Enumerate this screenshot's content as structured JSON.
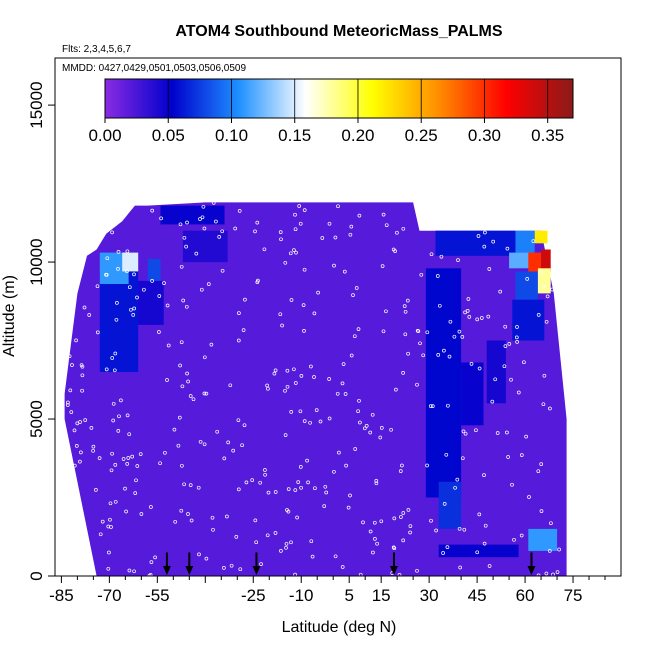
{
  "chart_data": {
    "type": "heatmap",
    "title": "ATOM4 Southbound MeteoricMass_PALMS",
    "subtitle_flights": "Flts: 2,3,4,5,6,7",
    "subtitle_dates": "MMDD: 0427,0429,0501,0503,0506,0509",
    "xlabel": "Latitude (deg N)",
    "ylabel": "Altitude (m)",
    "xlim": [
      -87,
      90
    ],
    "ylim": [
      0,
      16500
    ],
    "x_ticks": [
      -85,
      -70,
      -55,
      -40,
      -25,
      -10,
      5,
      15,
      30,
      45,
      60,
      75
    ],
    "x_tick_labels": [
      "-85",
      "-70",
      "-55",
      "",
      "-25",
      "-10",
      "5",
      "15",
      "30",
      "45",
      "60",
      "75"
    ],
    "y_ticks": [
      0,
      5000,
      10000,
      15000
    ],
    "y_tick_labels": [
      "0",
      "5000",
      "10000",
      "15000"
    ],
    "colorbar": {
      "min": 0,
      "max": 0.37,
      "ticks": [
        0.0,
        0.05,
        0.1,
        0.15,
        0.2,
        0.25,
        0.3,
        0.35
      ],
      "tick_labels": [
        "0.00",
        "0.05",
        "0.10",
        "0.15",
        "0.20",
        "0.25",
        "0.30",
        "0.35"
      ],
      "colors": [
        "#8a2be2",
        "#0000cd",
        "#1e90ff",
        "#ffffff",
        "#ffff00",
        "#ff8c00",
        "#ff0000",
        "#8b1a1a"
      ]
    },
    "background_value": 0.02,
    "coverage": [
      {
        "lat": -84,
        "top": 5800
      },
      {
        "lat": -80,
        "top": 9000
      },
      {
        "lat": -77,
        "top": 10200
      },
      {
        "lat": -74,
        "top": 10400
      },
      {
        "lat": -71,
        "top": 10900
      },
      {
        "lat": -66,
        "top": 11300
      },
      {
        "lat": -62,
        "top": 11800
      },
      {
        "lat": -58,
        "top": 11800
      },
      {
        "lat": -40,
        "top": 11900
      },
      {
        "lat": 5,
        "top": 11900
      },
      {
        "lat": 25,
        "top": 11900
      },
      {
        "lat": 27,
        "top": 11000
      },
      {
        "lat": 40,
        "top": 11000
      },
      {
        "lat": 55,
        "top": 11000
      },
      {
        "lat": 65,
        "top": 11000
      },
      {
        "lat": 67,
        "top": 10000
      },
      {
        "lat": 69,
        "top": 9000
      },
      {
        "lat": 71,
        "top": 7000
      },
      {
        "lat": 73,
        "top": 5000
      }
    ],
    "coverage_bottom": [
      {
        "lat": -84,
        "bottom": 5000
      },
      {
        "lat": -80,
        "bottom": 3000
      },
      {
        "lat": -77,
        "bottom": 1500
      },
      {
        "lat": -74,
        "bottom": 0
      },
      {
        "lat": 73,
        "bottom": 0
      }
    ],
    "features": [
      {
        "lat": [
          -73,
          -61
        ],
        "alt": [
          6500,
          9700
        ],
        "value": 0.06
      },
      {
        "lat": [
          -73,
          -64
        ],
        "alt": [
          9300,
          10300
        ],
        "value": 0.11
      },
      {
        "lat": [
          -66,
          -61
        ],
        "alt": [
          9700,
          10300
        ],
        "value": 0.15
      },
      {
        "lat": [
          -58,
          -54
        ],
        "alt": [
          9400,
          10100
        ],
        "value": 0.08
      },
      {
        "lat": [
          -61,
          -53
        ],
        "alt": [
          8000,
          9400
        ],
        "value": 0.045
      },
      {
        "lat": [
          -54,
          -34
        ],
        "alt": [
          11200,
          11800
        ],
        "value": 0.05
      },
      {
        "lat": [
          -47,
          -33
        ],
        "alt": [
          10000,
          11000
        ],
        "value": 0.04
      },
      {
        "lat": [
          29,
          40
        ],
        "alt": [
          2500,
          9800
        ],
        "value": 0.055
      },
      {
        "lat": [
          33,
          40
        ],
        "alt": [
          1500,
          3000
        ],
        "value": 0.07
      },
      {
        "lat": [
          40,
          47
        ],
        "alt": [
          4800,
          6800
        ],
        "value": 0.05
      },
      {
        "lat": [
          48,
          54
        ],
        "alt": [
          5500,
          7500
        ],
        "value": 0.045
      },
      {
        "lat": [
          32,
          57
        ],
        "alt": [
          10200,
          11000
        ],
        "value": 0.06
      },
      {
        "lat": [
          57,
          63
        ],
        "alt": [
          10300,
          11000
        ],
        "value": 0.1
      },
      {
        "lat": [
          63,
          67
        ],
        "alt": [
          10600,
          11000
        ],
        "value": 0.22
      },
      {
        "lat": [
          55,
          62
        ],
        "alt": [
          9800,
          10300
        ],
        "value": 0.12
      },
      {
        "lat": [
          61,
          65
        ],
        "alt": [
          9600,
          10300
        ],
        "value": 0.3
      },
      {
        "lat": [
          65,
          68
        ],
        "alt": [
          9700,
          10400
        ],
        "value": 0.34
      },
      {
        "lat": [
          57,
          64
        ],
        "alt": [
          8800,
          9700
        ],
        "value": 0.08
      },
      {
        "lat": [
          64,
          68
        ],
        "alt": [
          9000,
          9800
        ],
        "value": 0.18
      },
      {
        "lat": [
          56,
          66
        ],
        "alt": [
          7500,
          8800
        ],
        "value": 0.06
      },
      {
        "lat": [
          61,
          70
        ],
        "alt": [
          800,
          1500
        ],
        "value": 0.11
      },
      {
        "lat": [
          33,
          58
        ],
        "alt": [
          600,
          1000
        ],
        "value": 0.05
      }
    ],
    "profile_arrows_lat": [
      -52,
      -45,
      -24,
      19,
      62
    ]
  }
}
